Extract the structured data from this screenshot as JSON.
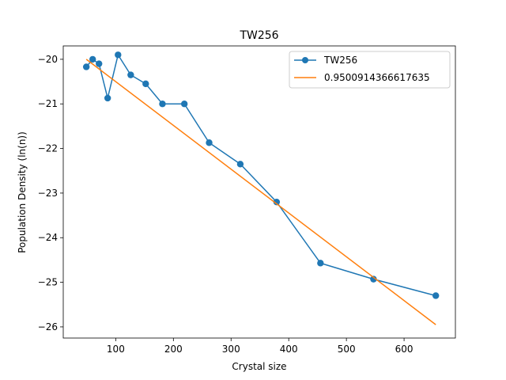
{
  "chart_data": {
    "type": "line",
    "title": "TW256",
    "xlabel": "Crystal size",
    "ylabel": "Population Density (ln(n))",
    "xlim": [
      9,
      689
    ],
    "ylim": [
      -26.25,
      -19.7
    ],
    "xticks": [
      100,
      200,
      300,
      400,
      500,
      600
    ],
    "yticks": [
      -26,
      -25,
      -24,
      -23,
      -22,
      -21,
      -20
    ],
    "xtick_labels": [
      "100",
      "200",
      "300",
      "400",
      "500",
      "600"
    ],
    "ytick_labels": [
      "−26",
      "−25",
      "−24",
      "−23",
      "−22",
      "−21",
      "−20"
    ],
    "grid": false,
    "legend_position": "top-right",
    "series": [
      {
        "name": "TW256",
        "style": "line-marker",
        "color": "#1f77b4",
        "x": [
          49,
          60,
          71,
          86,
          104,
          126,
          152,
          181,
          219,
          262,
          316,
          379,
          455,
          547,
          655
        ],
        "y": [
          -20.17,
          -20.0,
          -20.1,
          -20.87,
          -19.9,
          -20.35,
          -20.55,
          -21.0,
          -21.0,
          -21.87,
          -22.35,
          -23.2,
          -24.57,
          -24.93,
          -25.3
        ]
      },
      {
        "name": "0.9500914366617635",
        "style": "line",
        "color": "#ff7f0e",
        "x": [
          49,
          655
        ],
        "y": [
          -20.0,
          -25.95
        ]
      }
    ]
  }
}
